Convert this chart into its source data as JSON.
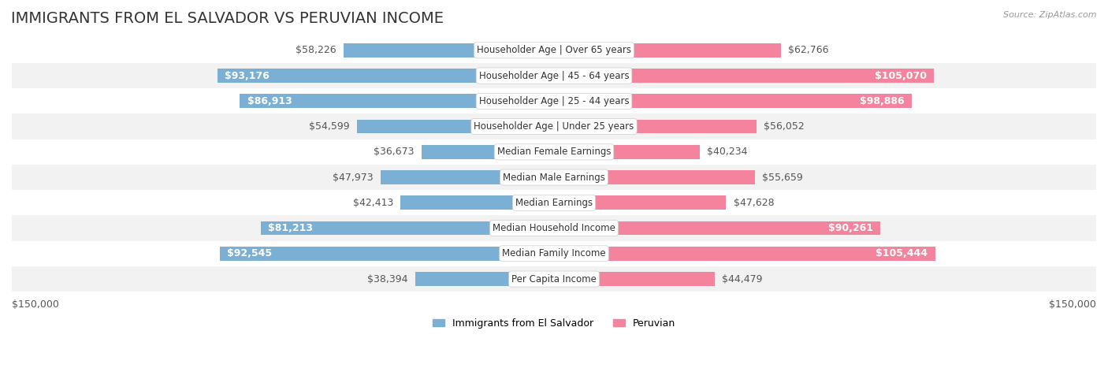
{
  "title": "IMMIGRANTS FROM EL SALVADOR VS PERUVIAN INCOME",
  "source": "Source: ZipAtlas.com",
  "categories": [
    "Per Capita Income",
    "Median Family Income",
    "Median Household Income",
    "Median Earnings",
    "Median Male Earnings",
    "Median Female Earnings",
    "Householder Age | Under 25 years",
    "Householder Age | 25 - 44 years",
    "Householder Age | 45 - 64 years",
    "Householder Age | Over 65 years"
  ],
  "salvador_values": [
    38394,
    92545,
    81213,
    42413,
    47973,
    36673,
    54599,
    86913,
    93176,
    58226
  ],
  "peruvian_values": [
    44479,
    105444,
    90261,
    47628,
    55659,
    40234,
    56052,
    98886,
    105070,
    62766
  ],
  "salvador_labels": [
    "$38,394",
    "$92,545",
    "$81,213",
    "$42,413",
    "$47,973",
    "$36,673",
    "$54,599",
    "$86,913",
    "$93,176",
    "$58,226"
  ],
  "peruvian_labels": [
    "$44,479",
    "$105,444",
    "$90,261",
    "$47,628",
    "$55,659",
    "$40,234",
    "$56,052",
    "$98,886",
    "$105,070",
    "$62,766"
  ],
  "salvador_color": "#7bafd4",
  "peruvian_color": "#f4849e",
  "salvador_color_dark": "#5b8db8",
  "peruvian_color_dark": "#e85c80",
  "label_center_color": "#555555",
  "axis_max": 150000,
  "background_color": "#ffffff",
  "row_bg_color": "#f2f2f2",
  "legend_salvador": "Immigrants from El Salvador",
  "legend_peruvian": "Peruvian",
  "bar_height": 0.55,
  "title_fontsize": 14,
  "label_fontsize": 9,
  "category_fontsize": 8.5
}
